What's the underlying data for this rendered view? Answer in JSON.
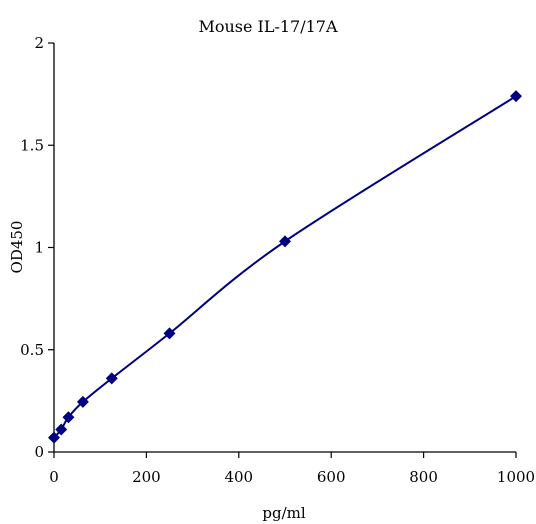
{
  "chart_data": {
    "type": "line",
    "title": "Mouse IL-17/17A",
    "xlabel": "pg/ml",
    "ylabel": "OD450",
    "xlim": [
      0,
      1000
    ],
    "ylim": [
      0,
      2
    ],
    "x_ticks": [
      0,
      200,
      400,
      600,
      800,
      1000
    ],
    "y_ticks": [
      0,
      0.5,
      1,
      1.5,
      2
    ],
    "x_tick_labels": [
      "0",
      "200",
      "400",
      "600",
      "800",
      "1000"
    ],
    "y_tick_labels": [
      "0",
      "0.5",
      "1",
      "1.5",
      "2"
    ],
    "grid": false,
    "legend": "none",
    "series": [
      {
        "x": [
          0,
          15.6,
          31.25,
          62.5,
          125,
          250,
          500,
          1000
        ],
        "y": [
          0.07,
          0.11,
          0.17,
          0.245,
          0.36,
          0.58,
          1.03,
          1.74
        ],
        "marker": "diamond",
        "color": "#000080"
      }
    ]
  }
}
